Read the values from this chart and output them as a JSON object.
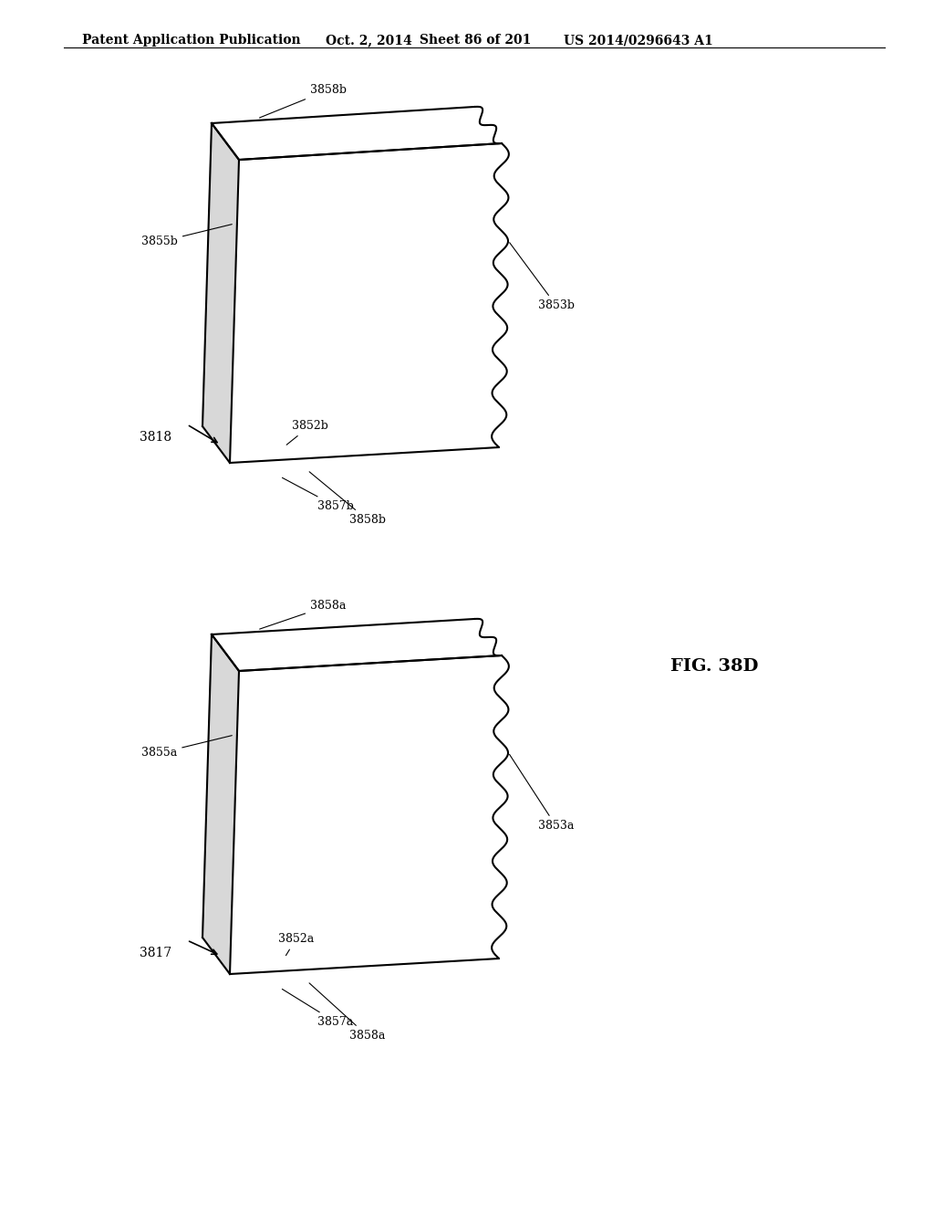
{
  "bg_color": "#ffffff",
  "header_left": "Patent Application Publication",
  "header_mid": "Oct. 2, 2014",
  "header_right_sheet": "Sheet 86 of 201",
  "header_right_patent": "US 2014/0296643 A1",
  "fig_label": "FIG. 38D",
  "line_color": "#000000",
  "line_width": 1.5,
  "annotation_fontsize": 9,
  "header_fontsize": 10,
  "box1": {
    "label": "3818",
    "top_label": "3858b",
    "left_label": "3855b",
    "base_label": "3852b",
    "wavy_label": "3853b",
    "bot_label1": "3857b",
    "bot_label2": "3858b"
  },
  "box2": {
    "label": "3817",
    "top_label": "3858a",
    "left_label": "3855a",
    "base_label": "3852a",
    "wavy_label": "3853a",
    "bot_label1": "3857a",
    "bot_label2": "3858a"
  }
}
